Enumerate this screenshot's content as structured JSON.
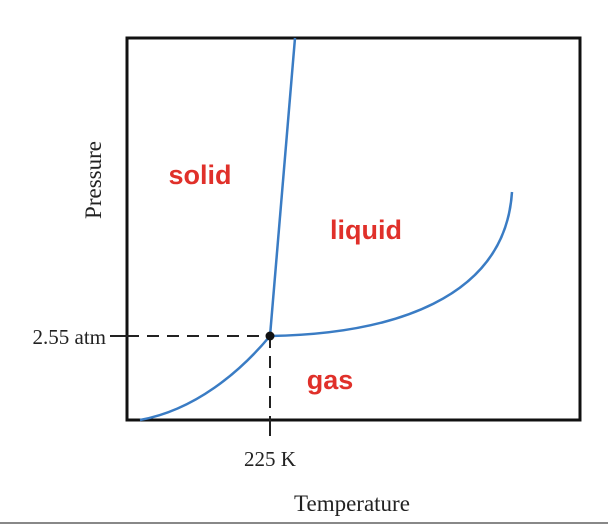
{
  "diagram": {
    "x_axis_label": "Temperature",
    "y_axis_label": "Pressure",
    "triple_point": {
      "pressure_label": "2.55 atm",
      "temperature_label": "225 K"
    },
    "regions": [
      "solid",
      "liquid",
      "gas"
    ]
  }
}
